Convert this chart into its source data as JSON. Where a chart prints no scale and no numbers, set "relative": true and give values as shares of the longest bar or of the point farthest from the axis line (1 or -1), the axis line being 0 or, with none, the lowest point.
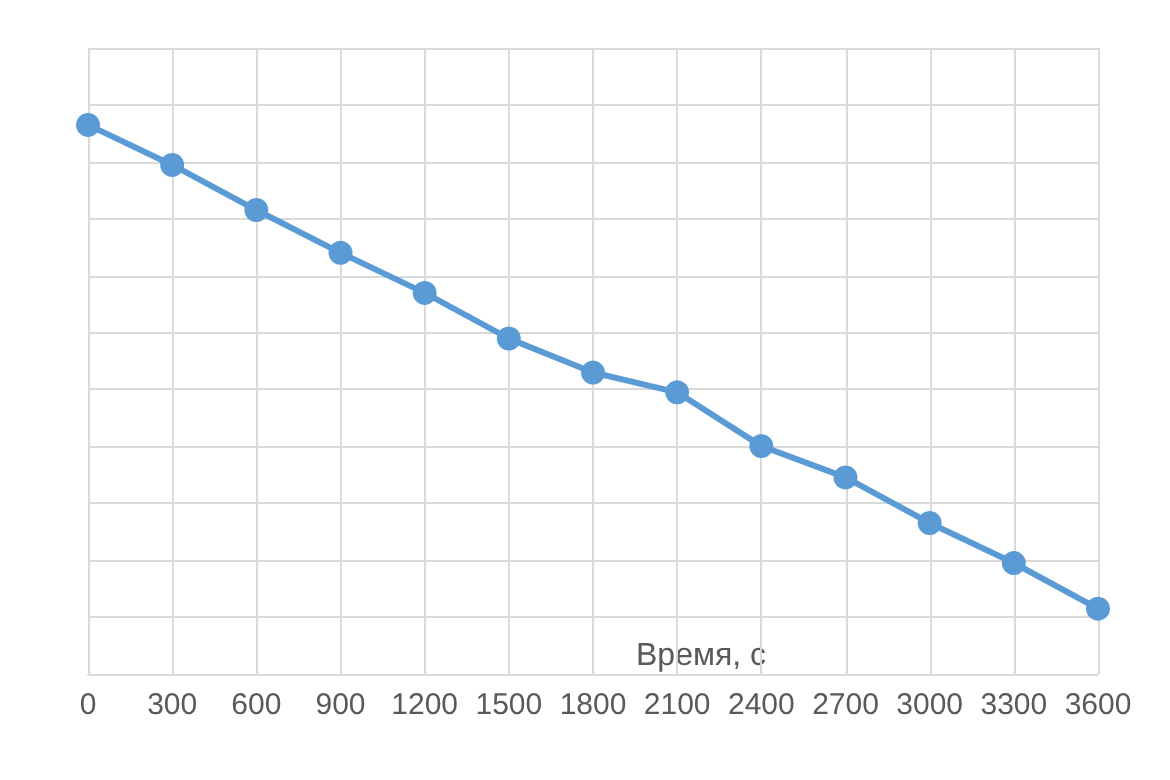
{
  "chart_data": {
    "type": "line",
    "xlabel": "Время, с",
    "relative": true,
    "x": [
      0,
      300,
      600,
      900,
      1200,
      1500,
      1800,
      2100,
      2400,
      2700,
      3000,
      3300,
      3600
    ],
    "series": [
      {
        "color": "#5b9bd5",
        "values": [
          1,
          0.927,
          0.845,
          0.767,
          0.694,
          0.611,
          0.549,
          0.513,
          0.415,
          0.358,
          0.275,
          0.202,
          0.119
        ]
      }
    ],
    "xlim": [
      0,
      3600
    ],
    "xticks": [
      0,
      300,
      600,
      900,
      1200,
      1500,
      1800,
      2100,
      2400,
      2700,
      3000,
      3300,
      3600
    ],
    "grid": true,
    "marker": "circle",
    "line_style": "solid"
  }
}
